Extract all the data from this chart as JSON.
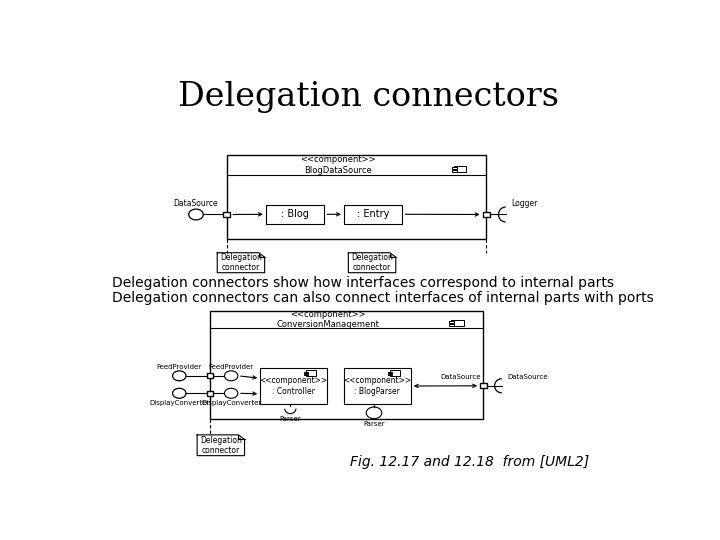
{
  "title": "Delegation connectors",
  "title_fontsize": 24,
  "title_font": "DejaVu Serif",
  "line1": "Delegation connectors show how interfaces correspond to internal parts",
  "line2": "Delegation connectors can also connect interfaces of internal parts with ports",
  "text_fontsize": 10,
  "caption": "Fig. 12.17 and 12.18  from [UML2]",
  "caption_fontsize": 10,
  "bg_color": "#ffffff"
}
